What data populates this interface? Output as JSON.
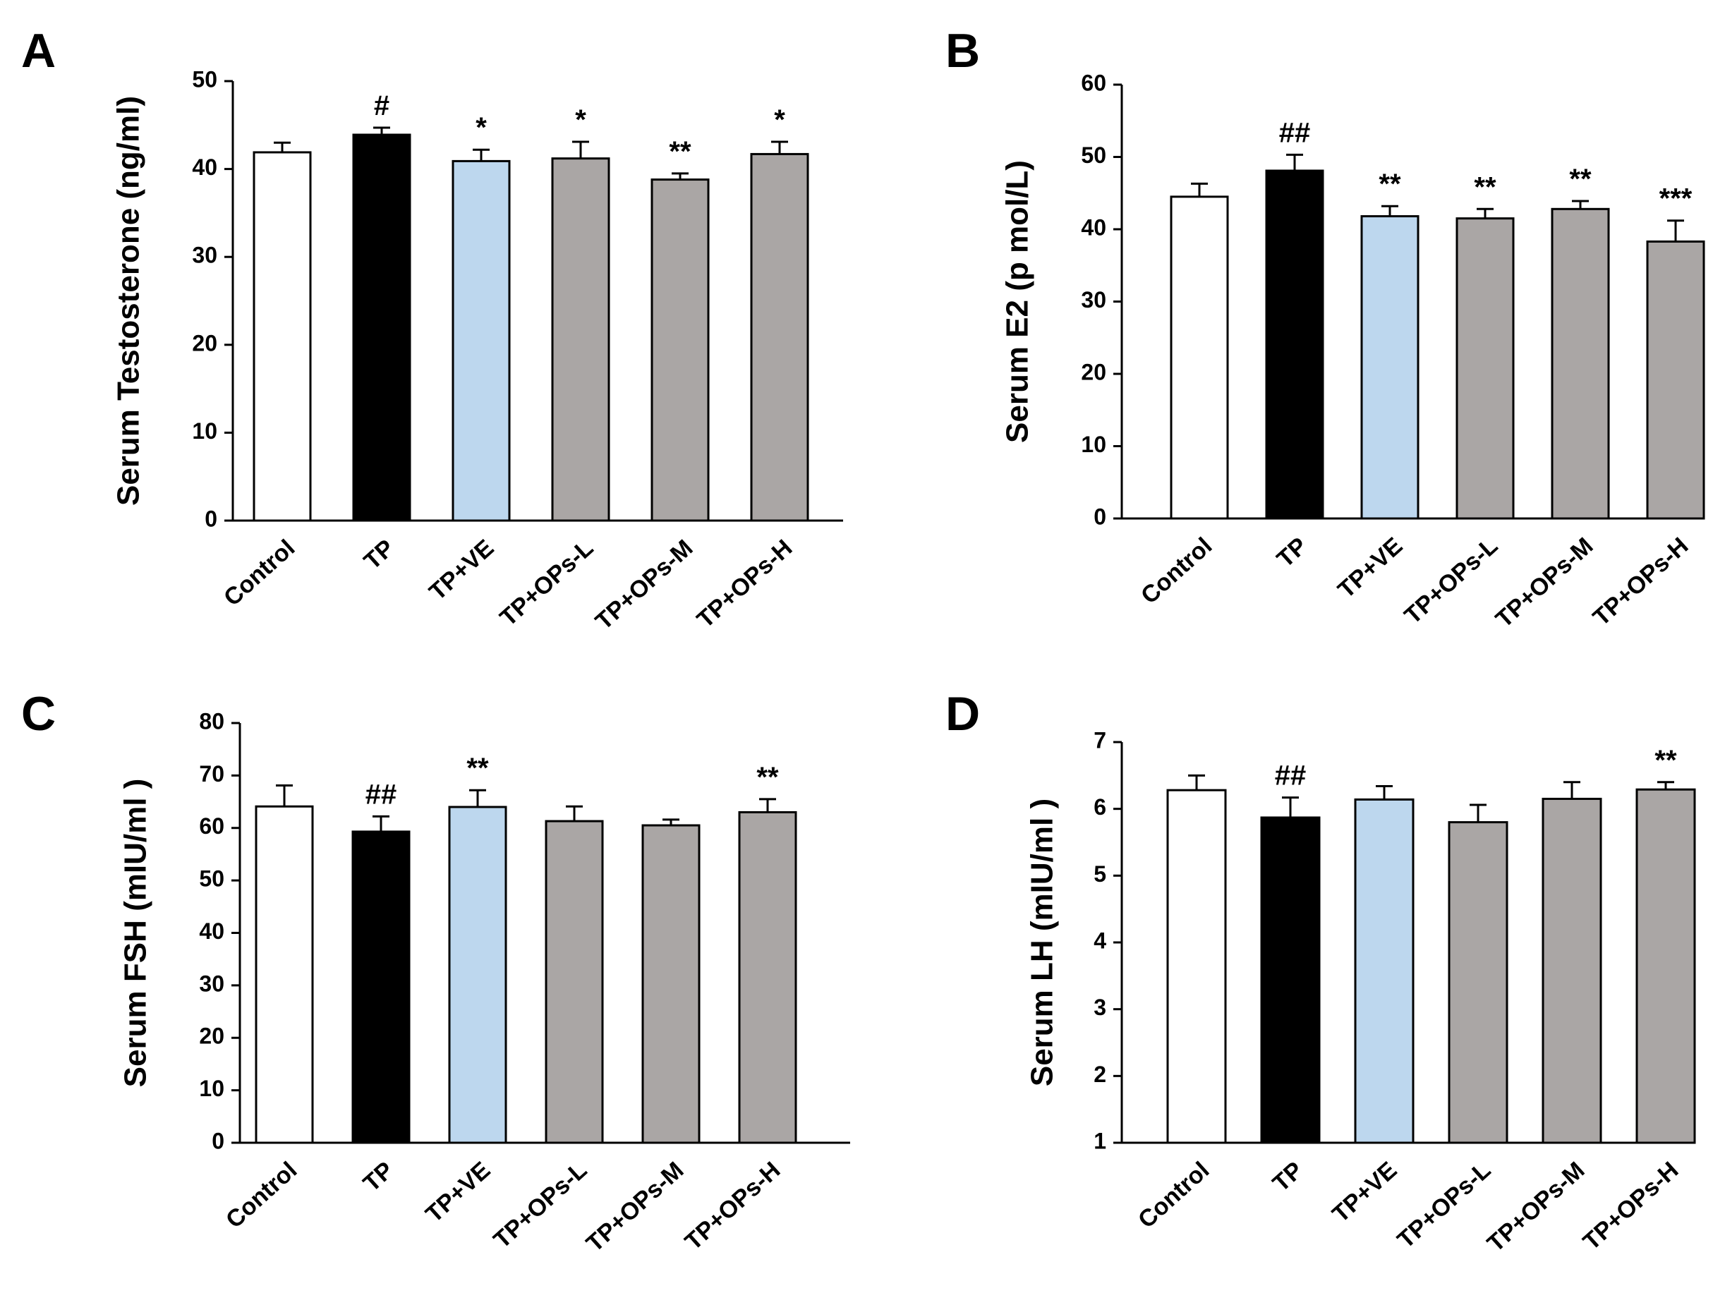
{
  "colors": {
    "Control": "#ffffff",
    "TP": "#000000",
    "TP+VE": "#bdd7ee",
    "TP+OPs": "#aaa6a5"
  },
  "chart_data": [
    {
      "panel": "A",
      "type": "bar",
      "ylabel": "Serum Testosterone (ng/ml)",
      "categories": [
        "Control",
        "TP",
        "TP+VE",
        "TP+OPs-L",
        "TP+OPs-M",
        "TP+OPs-H"
      ],
      "values": [
        41.9,
        43.9,
        40.9,
        41.2,
        38.8,
        41.7
      ],
      "errors": [
        1.1,
        0.8,
        1.3,
        1.9,
        0.7,
        1.4
      ],
      "annotations": [
        "",
        "#",
        "*",
        "*",
        "**",
        "*"
      ],
      "ylim": [
        0,
        50
      ],
      "yticks": [
        0,
        10,
        20,
        30,
        40,
        50
      ]
    },
    {
      "panel": "B",
      "type": "bar",
      "ylabel": "Serum E2 (p mol/L)",
      "categories": [
        "Control",
        "TP",
        "TP+VE",
        "TP+OPs-L",
        "TP+OPs-M",
        "TP+OPs-H"
      ],
      "values": [
        44.5,
        48.1,
        41.8,
        41.5,
        42.8,
        38.3
      ],
      "errors": [
        1.8,
        2.2,
        1.4,
        1.3,
        1.1,
        2.9
      ],
      "annotations": [
        "",
        "##",
        "**",
        "**",
        "**",
        "***"
      ],
      "ylim": [
        0,
        60
      ],
      "yticks": [
        0,
        10,
        20,
        30,
        40,
        50,
        60
      ]
    },
    {
      "panel": "C",
      "type": "bar",
      "ylabel": "Serum FSH (mIU/ml )",
      "categories": [
        "Control",
        "TP",
        "TP+VE",
        "TP+OPs-L",
        "TP+OPs-M",
        "TP+OPs-H"
      ],
      "values": [
        64.1,
        59.3,
        64.0,
        61.3,
        60.5,
        63.0
      ],
      "errors": [
        4.0,
        2.9,
        3.2,
        2.8,
        1.1,
        2.5
      ],
      "annotations": [
        "",
        "##",
        "**",
        "",
        "",
        "**"
      ],
      "ylim": [
        0,
        80
      ],
      "yticks": [
        0,
        10,
        20,
        30,
        40,
        50,
        60,
        70,
        80
      ]
    },
    {
      "panel": "D",
      "type": "bar",
      "ylabel": "Serum LH (mIU/ml )",
      "categories": [
        "Control",
        "TP",
        "TP+VE",
        "TP+OPs-L",
        "TP+OPs-M",
        "TP+OPs-H"
      ],
      "values": [
        6.28,
        5.87,
        6.14,
        5.8,
        6.15,
        6.29
      ],
      "errors": [
        0.22,
        0.3,
        0.2,
        0.26,
        0.25,
        0.11
      ],
      "annotations": [
        "",
        "##",
        "",
        "",
        "",
        "**"
      ],
      "ylim": [
        1,
        7
      ],
      "yticks": [
        1,
        2,
        3,
        4,
        5,
        6,
        7
      ]
    }
  ]
}
